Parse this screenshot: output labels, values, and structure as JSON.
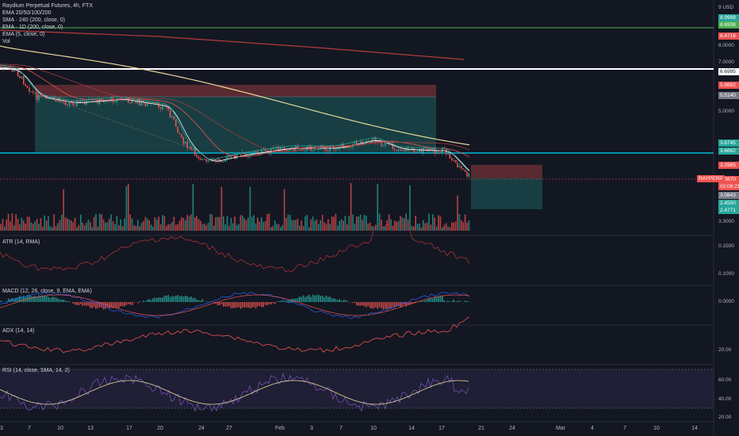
{
  "chart_title": "Raydium Perpetual Futures, 4h, FTX",
  "indicators_main": [
    "EMA 20/50/100/200",
    "SMA · 240 (200, close, 0)",
    "EMA · 1D (200, close, 0)",
    "EMA (5, close, 0)",
    "Vol"
  ],
  "currency": "USD",
  "price_axis": {
    "top_label": "9",
    "labels": [
      "8.0000",
      "7.0000",
      "5.0000",
      "3.3000"
    ],
    "tags": [
      {
        "text": "8.9999",
        "color": "#26a69a"
      },
      {
        "text": "8.6938",
        "color": "#4caf50"
      },
      {
        "text": "8.4716",
        "color": "#ef5350"
      },
      {
        "text": "6.6995",
        "color": "#ffffff",
        "text_color": "#131722"
      },
      {
        "text": "5.9892",
        "color": "#ef5350"
      },
      {
        "text": "5.5140",
        "color": "#787b86"
      },
      {
        "text": "3.6745",
        "color": "#26a69a"
      },
      {
        "text": "3.6682",
        "color": "#26a69a"
      },
      {
        "text": "3.3965",
        "color": "#ef5350"
      },
      {
        "text": "3.0870",
        "color": "#ef5350"
      },
      {
        "text": "02:08:21",
        "color": "#ef5350"
      },
      {
        "text": "3.0843",
        "color": "#787b86"
      },
      {
        "text": "2.4500",
        "color": "#26a69a"
      },
      {
        "text": "2.4771",
        "color": "#26a69a"
      }
    ],
    "symbol_tag": "RAYPERP"
  },
  "panes": {
    "atr": {
      "label": "ATR (14, RMA)",
      "axis": [
        "0.1500",
        "0.1000"
      ]
    },
    "macd": {
      "label": "MACD (12, 26, close, 9, EMA, EMA)",
      "axis": [
        "0.0000"
      ]
    },
    "adx": {
      "label": "ADX (14, 14)",
      "axis": [
        "20.00"
      ]
    },
    "rsi": {
      "label": "RSI (14, close, SMA, 14, 2)",
      "axis": [
        "60.00",
        "40.00",
        "20.00"
      ]
    }
  },
  "time_axis": [
    "3",
    "7",
    "10",
    "13",
    "17",
    "20",
    "24",
    "27",
    "Feb",
    "3",
    "7",
    "10",
    "14",
    "17",
    "21",
    "24",
    "Mar",
    "4",
    "7",
    "10",
    "14"
  ],
  "colors": {
    "background": "#131722",
    "up": "#26a69a",
    "down": "#ef5350",
    "sma": "#e9d79a",
    "ema_green": "#4caf50",
    "cyan_line": "#00bcd4",
    "rsi_line": "#7e57c2"
  }
}
